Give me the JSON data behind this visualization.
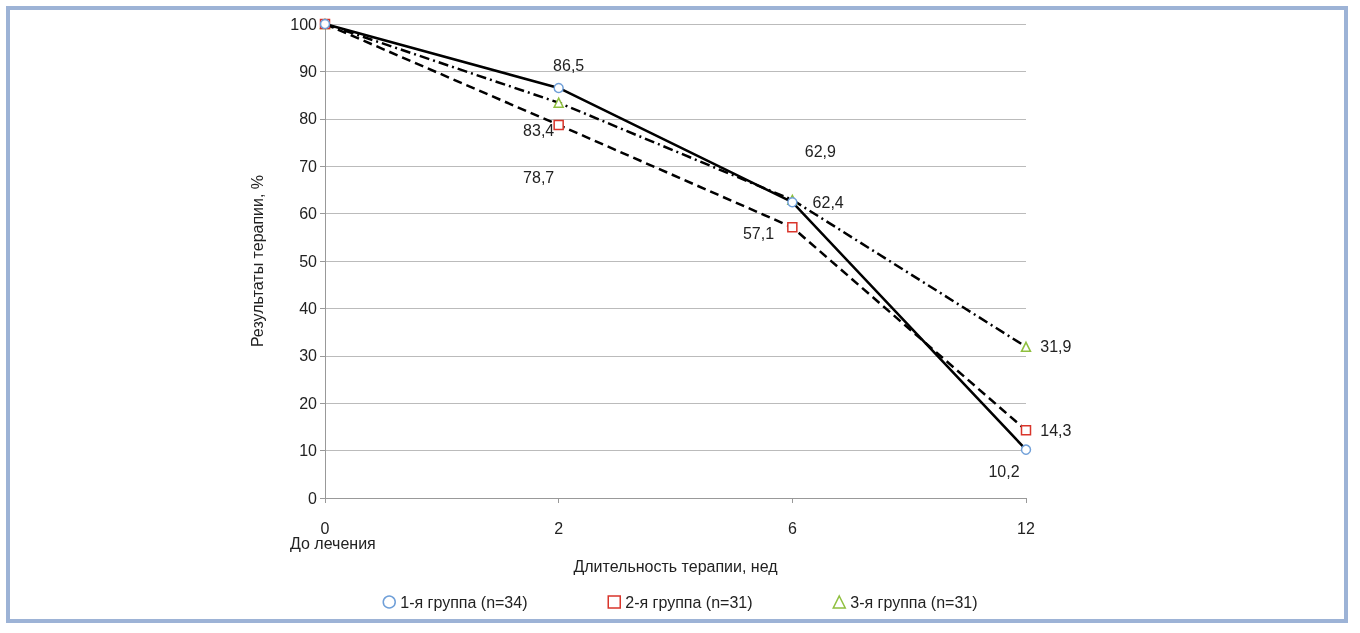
{
  "chart_data": {
    "type": "line",
    "xlabel": "Длительность терапии, нед",
    "ylabel": "Результаты терапии, %",
    "categories": [
      "0",
      "2",
      "6",
      "12"
    ],
    "series": [
      {
        "name": "1-я группа (n=34)",
        "color": "#000000",
        "values": [
          100,
          86.5,
          62.4,
          10.2
        ],
        "value_labels": [
          null,
          "86,5",
          "62,4",
          "10,2"
        ],
        "colors": [
          "#6f9fd8",
          "#6f9fd8",
          "#6f9fd8",
          "#6f9fd8"
        ],
        "marker": "circle",
        "line_style": "solid"
      },
      {
        "name": "2-я группа (n=31)",
        "color": "#000000",
        "values": [
          100,
          78.7,
          57.1,
          14.3
        ],
        "value_labels": [
          null,
          "78,7",
          "57,1",
          "14,3"
        ],
        "colors": [
          "#d9352b",
          "#d9352b",
          "#d9352b",
          "#d9352b"
        ],
        "marker": "square",
        "line_style": "dashed"
      },
      {
        "name": "3-я группа (n=31)",
        "color": "#000000",
        "values": [
          100,
          83.4,
          62.9,
          31.9
        ],
        "value_labels": [
          null,
          "83,4",
          "62,9",
          "31,9"
        ],
        "colors": [
          "#8fbf3f",
          "#8fbf3f",
          "#8fbf3f",
          "#8fbf3f"
        ],
        "marker": "triangle",
        "line_style": "dashdot"
      }
    ],
    "ylim": [
      0,
      100
    ],
    "yticks": [
      0,
      10,
      20,
      30,
      40,
      50,
      60,
      70,
      80,
      90,
      100
    ],
    "grid": "y",
    "legend": "bottom",
    "annotations": [
      "До лечения"
    ]
  }
}
